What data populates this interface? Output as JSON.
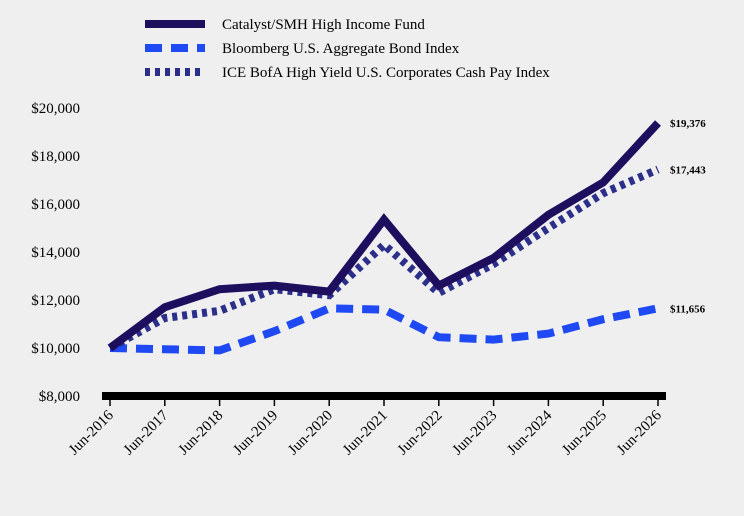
{
  "chart_data": {
    "type": "line",
    "categories": [
      "Jun-2016",
      "Jun-2017",
      "Jun-2018",
      "Jun-2019",
      "Jun-2020",
      "Jun-2021",
      "Jun-2022",
      "Jun-2023",
      "Jun-2024",
      "Jun-2025",
      "Jun-2026"
    ],
    "ylim": [
      8000,
      20000
    ],
    "y_ticks": [
      "$8,000",
      "$10,000",
      "$12,000",
      "$14,000",
      "$16,000",
      "$18,000",
      "$20,000"
    ],
    "y_tick_values": [
      8000,
      10000,
      12000,
      14000,
      16000,
      18000,
      20000
    ],
    "grid": false,
    "legend_position": "top",
    "series": [
      {
        "name": "Catalyst/SMH High Income Fund",
        "color": "#1e0e5e",
        "dash": "solid",
        "values": [
          10000,
          11700,
          12450,
          12600,
          12350,
          15350,
          12600,
          13750,
          15550,
          16900,
          19376
        ],
        "end_label": "$19,376"
      },
      {
        "name": "Bloomberg U.S. Aggregate Bond Index",
        "color": "#1f49f2",
        "dash": "dashed",
        "values": [
          10000,
          9950,
          9900,
          10700,
          11650,
          11600,
          10450,
          10350,
          10600,
          11200,
          11656
        ],
        "end_label": "$11,656"
      },
      {
        "name": "ICE BofA High Yield U.S. Corporates Cash Pay Index",
        "color": "#2b2f8a",
        "dash": "dotted",
        "values": [
          10000,
          11250,
          11550,
          12450,
          12200,
          14300,
          12300,
          13500,
          15000,
          16450,
          17443
        ],
        "end_label": "$17,443"
      }
    ]
  }
}
